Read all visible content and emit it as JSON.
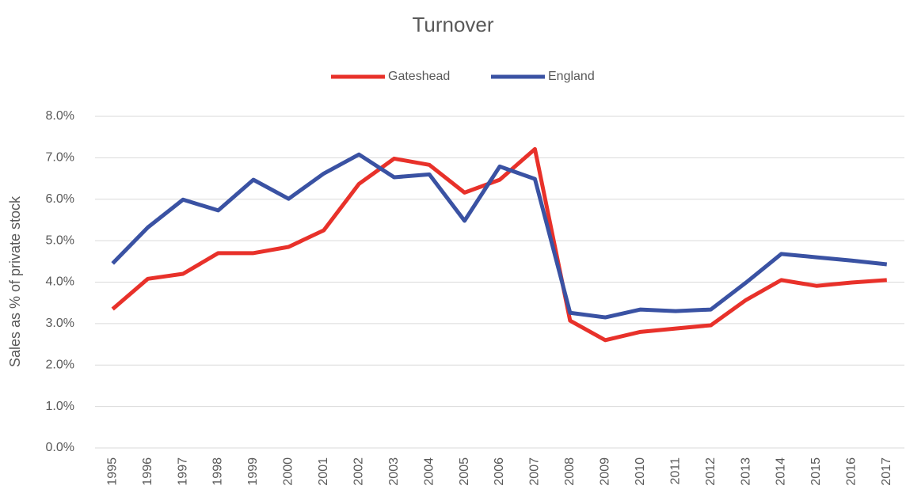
{
  "chart_data": {
    "type": "line",
    "title": "Turnover",
    "y_label": "Sales as % of private stock",
    "categories": [
      "1995",
      "1996",
      "1997",
      "1998",
      "1999",
      "2000",
      "2001",
      "2002",
      "2003",
      "2004",
      "2005",
      "2006",
      "2007",
      "2008",
      "2009",
      "2010",
      "2011",
      "2012",
      "2013",
      "2014",
      "2015",
      "2016",
      "2017"
    ],
    "series": [
      {
        "name": "Gateshead",
        "color": "#e8312a",
        "values": [
          3.35,
          4.08,
          4.2,
          4.7,
          4.7,
          4.85,
          5.25,
          6.37,
          6.98,
          6.83,
          6.16,
          6.47,
          7.21,
          3.07,
          2.6,
          2.8,
          2.88,
          2.96,
          3.57,
          4.05,
          3.91,
          3.99,
          4.05
        ]
      },
      {
        "name": "England",
        "color": "#3a52a3",
        "values": [
          4.45,
          5.32,
          5.99,
          5.73,
          6.47,
          6.01,
          6.62,
          7.08,
          6.53,
          6.6,
          5.48,
          6.79,
          6.49,
          3.26,
          3.15,
          3.34,
          3.3,
          3.34,
          3.99,
          4.68,
          4.6,
          4.52,
          4.43
        ]
      }
    ],
    "ylim": [
      0,
      8
    ],
    "yticks": [
      {
        "value": 0,
        "label": "0.0%"
      },
      {
        "value": 1,
        "label": "1.0%"
      },
      {
        "value": 2,
        "label": "2.0%"
      },
      {
        "value": 3,
        "label": "3.0%"
      },
      {
        "value": 4,
        "label": "4.0%"
      },
      {
        "value": 5,
        "label": "5.0%"
      },
      {
        "value": 6,
        "label": "6.0%"
      },
      {
        "value": 7,
        "label": "7.0%"
      },
      {
        "value": 8,
        "label": "8.0%"
      }
    ],
    "grid": true,
    "legend": "top"
  }
}
